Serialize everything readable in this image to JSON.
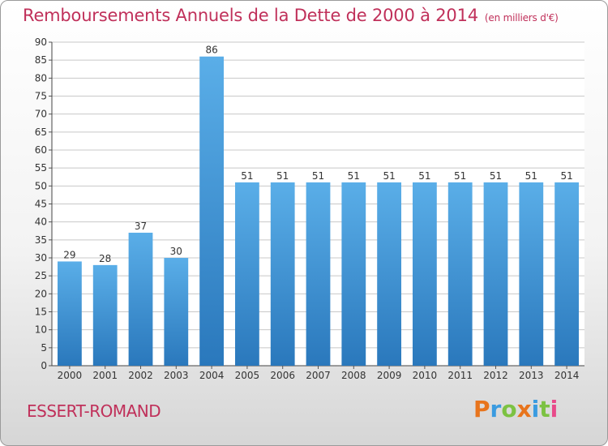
{
  "header": {
    "title": "Remboursements Annuels de la Dette de 2000 à 2014",
    "unit": "(en milliers d'€)"
  },
  "footer": {
    "commune": "ESSERT-ROMAND",
    "brand": "Proxiti",
    "brand_colors": [
      "#e8741c",
      "#3a9be0",
      "#7cc242",
      "#e8741c",
      "#3a9be0",
      "#7cc242",
      "#e84a8a"
    ]
  },
  "colors": {
    "bar_light": "#5aaee8",
    "bar_dark": "#2a78bc",
    "title": "#c0305a",
    "grid": "#c8c8c8"
  },
  "chart_data": {
    "type": "bar",
    "title": "Remboursements Annuels de la Dette de 2000 à 2014",
    "categories": [
      "2000",
      "2001",
      "2002",
      "2003",
      "2004",
      "2005",
      "2006",
      "2007",
      "2008",
      "2009",
      "2010",
      "2011",
      "2012",
      "2013",
      "2014"
    ],
    "values": [
      29,
      28,
      37,
      30,
      86,
      51,
      51,
      51,
      51,
      51,
      51,
      51,
      51,
      51,
      51
    ],
    "ylim": [
      0,
      90
    ],
    "yticks": [
      0,
      5,
      10,
      15,
      20,
      25,
      30,
      35,
      40,
      45,
      50,
      55,
      60,
      65,
      70,
      75,
      80,
      85,
      90
    ],
    "grid": true,
    "data_labels": true
  }
}
